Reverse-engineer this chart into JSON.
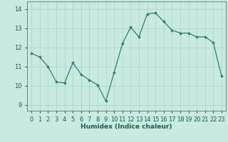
{
  "x": [
    0,
    1,
    2,
    3,
    4,
    5,
    6,
    7,
    8,
    9,
    10,
    11,
    12,
    13,
    14,
    15,
    16,
    17,
    18,
    19,
    20,
    21,
    22,
    23
  ],
  "y": [
    11.7,
    11.5,
    11.0,
    10.2,
    10.15,
    11.2,
    10.6,
    10.3,
    10.05,
    9.2,
    10.7,
    12.2,
    13.05,
    12.55,
    13.75,
    13.8,
    13.35,
    12.9,
    12.75,
    12.75,
    12.55,
    12.55,
    12.25,
    10.5
  ],
  "line_color": "#2e7d6e",
  "marker": "D",
  "marker_size": 2.0,
  "bg_color": "#c8eae2",
  "grid_color": "#afd4cc",
  "xlabel": "Humidex (Indice chaleur)",
  "xlim": [
    -0.5,
    23.5
  ],
  "ylim": [
    8.7,
    14.4
  ],
  "yticks": [
    9,
    10,
    11,
    12,
    13,
    14
  ],
  "xticks": [
    0,
    1,
    2,
    3,
    4,
    5,
    6,
    7,
    8,
    9,
    10,
    11,
    12,
    13,
    14,
    15,
    16,
    17,
    18,
    19,
    20,
    21,
    22,
    23
  ],
  "label_fontsize": 6.5,
  "tick_fontsize": 6.0,
  "tick_color": "#1a5c50",
  "label_color": "#1a5c50"
}
